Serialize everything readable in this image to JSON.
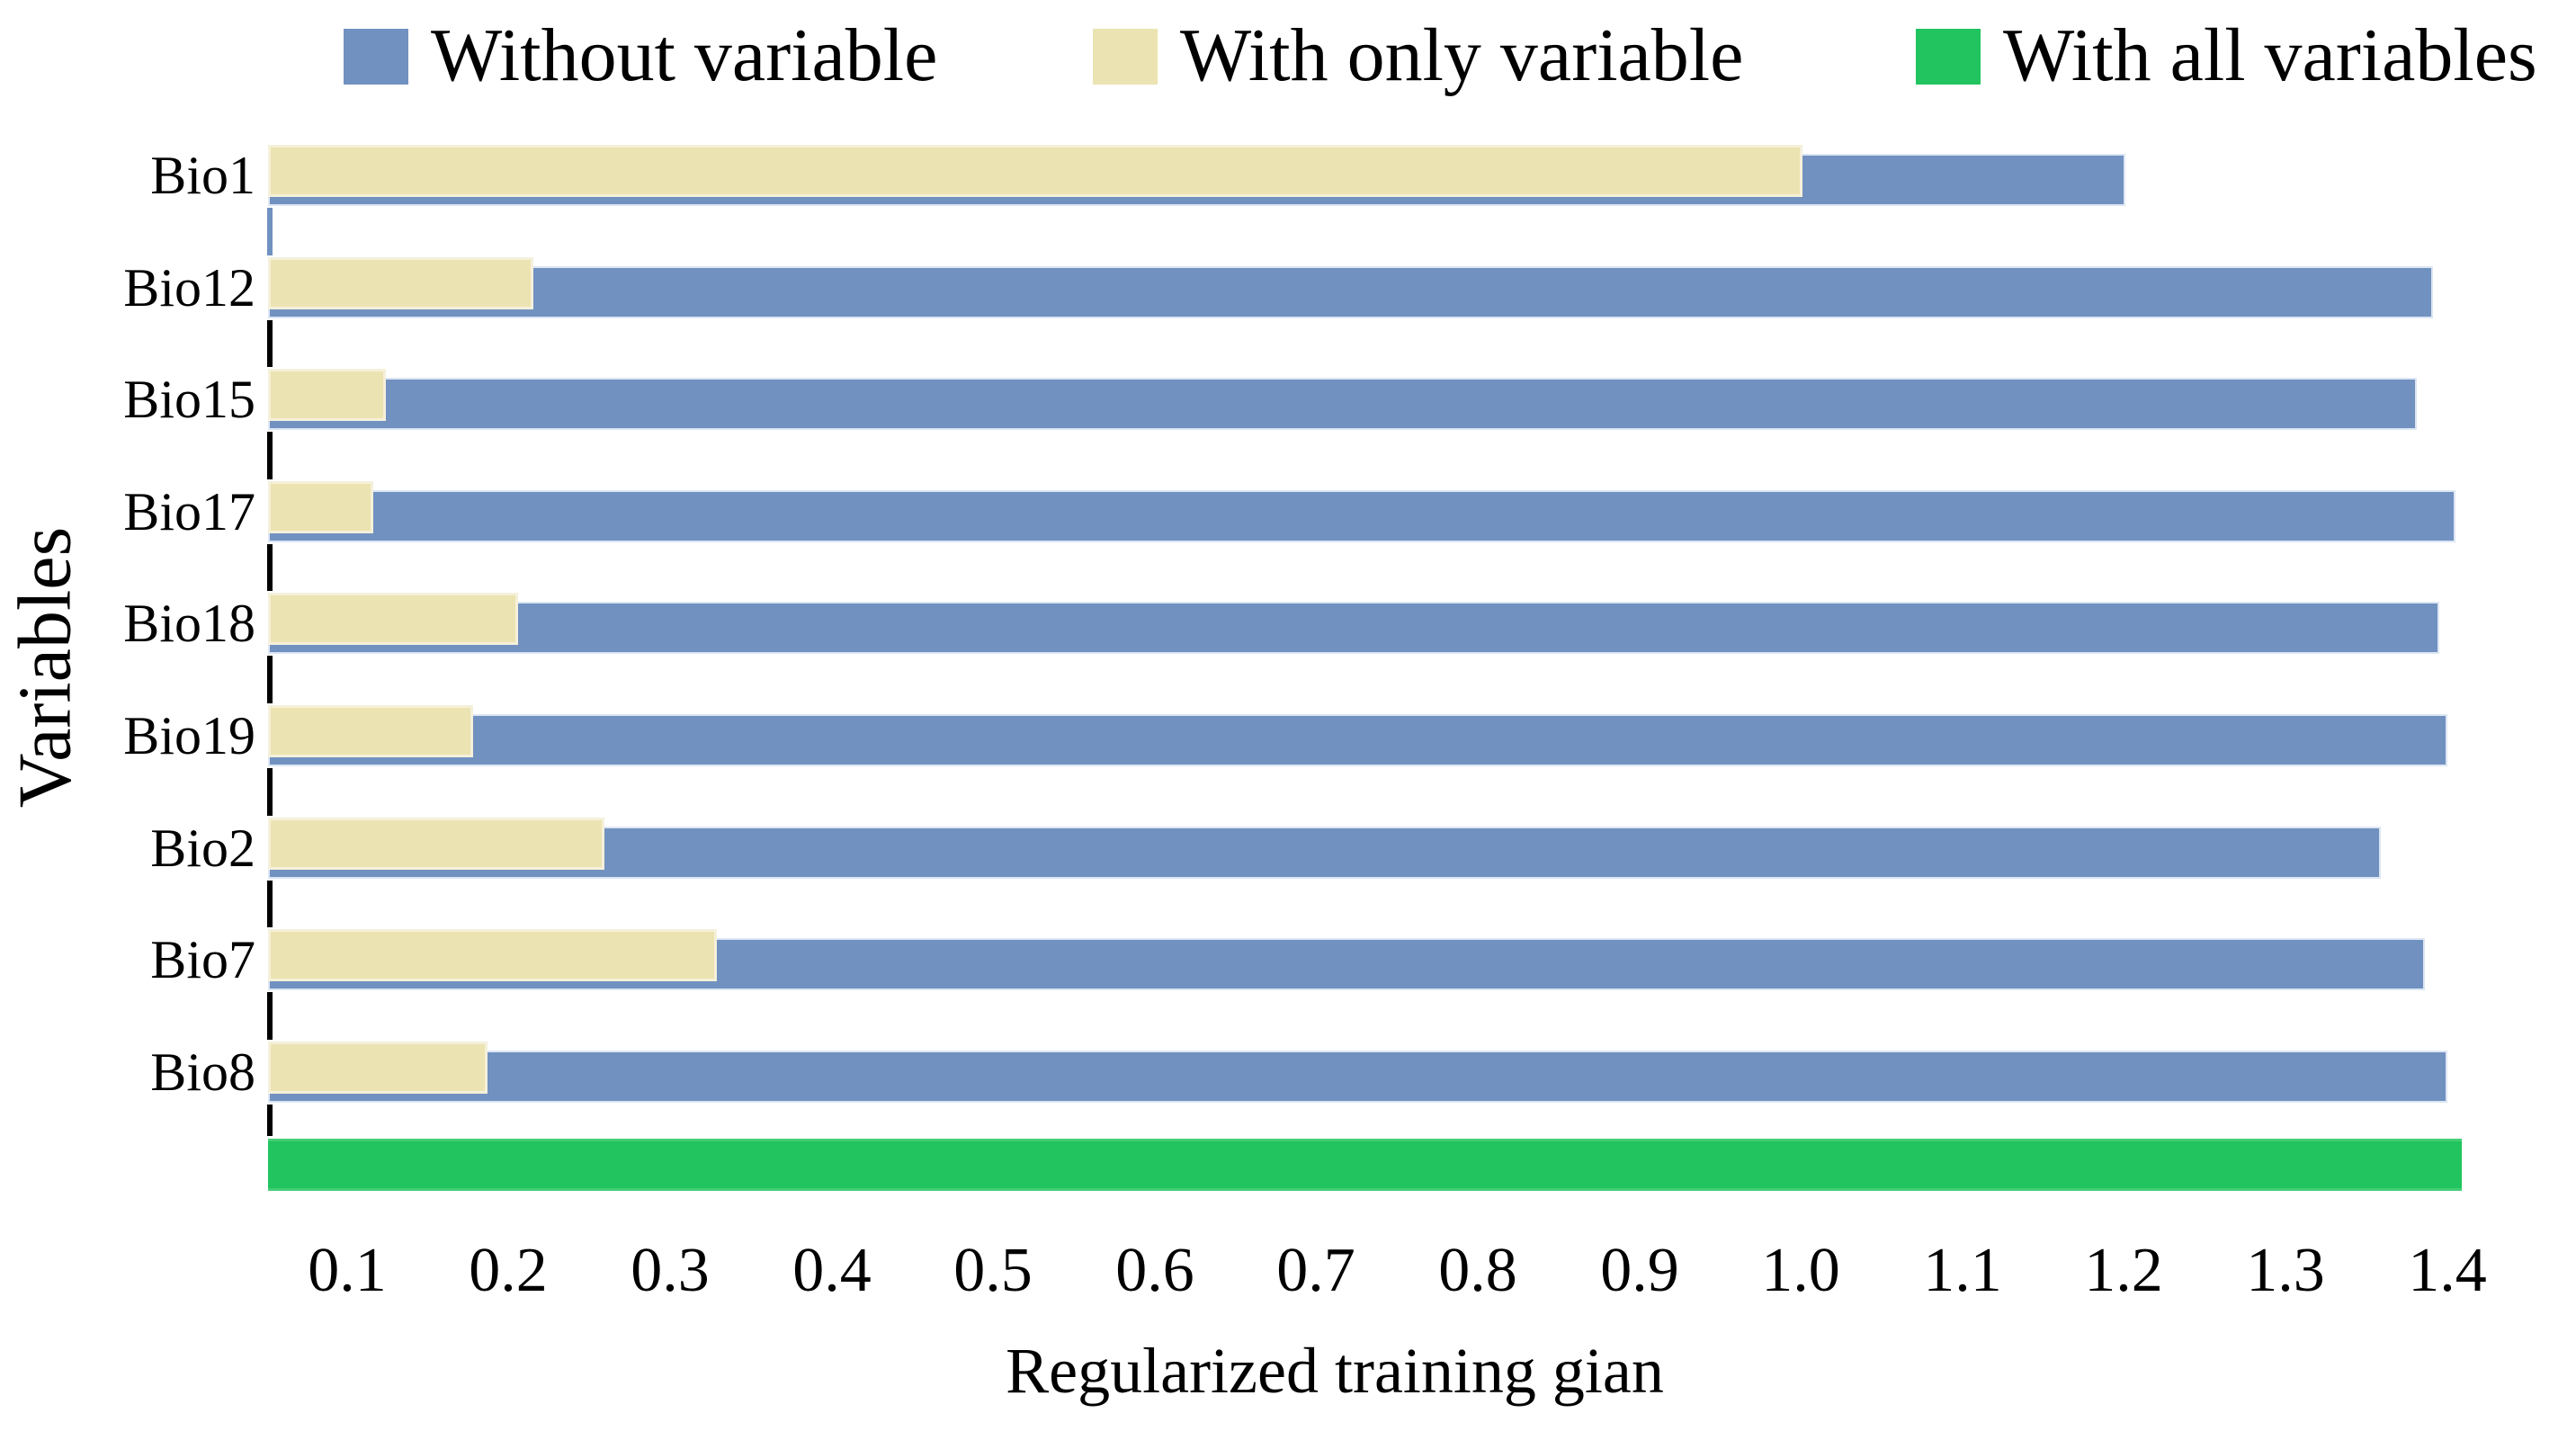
{
  "chart_data": {
    "type": "bar",
    "orientation": "horizontal",
    "title": "",
    "xlabel": "Regularized training gian",
    "ylabel": "Variables",
    "legend_position": "top",
    "grid": false,
    "categories": [
      "Bio1",
      "Bio12",
      "Bio15",
      "Bio17",
      "Bio18",
      "Bio19",
      "Bio2",
      "Bio7",
      "Bio8"
    ],
    "series": [
      {
        "name": "Without variable",
        "color": "#7191c0",
        "values": [
          1.2,
          1.39,
          1.38,
          1.404,
          1.394,
          1.399,
          1.358,
          1.385,
          1.399
        ]
      },
      {
        "name": "With only variable",
        "color": "#ece3b2",
        "values": [
          1.0,
          0.214,
          0.123,
          0.115,
          0.205,
          0.177,
          0.258,
          0.328,
          0.186
        ]
      },
      {
        "name": "With all variables",
        "color": "#21c45f",
        "values": [
          1.408
        ],
        "note": "single full-width bar at bottom of chart, no category label"
      }
    ],
    "x_ticks": [
      0.1,
      0.2,
      0.3,
      0.4,
      0.5,
      0.6,
      0.7,
      0.8,
      0.9,
      1.0,
      1.1,
      1.2,
      1.3,
      1.4
    ],
    "x_min": 0.05,
    "x_max": 1.48,
    "axis_tick_color": "#000000",
    "first_gap_tick_color": "#7191c0"
  }
}
